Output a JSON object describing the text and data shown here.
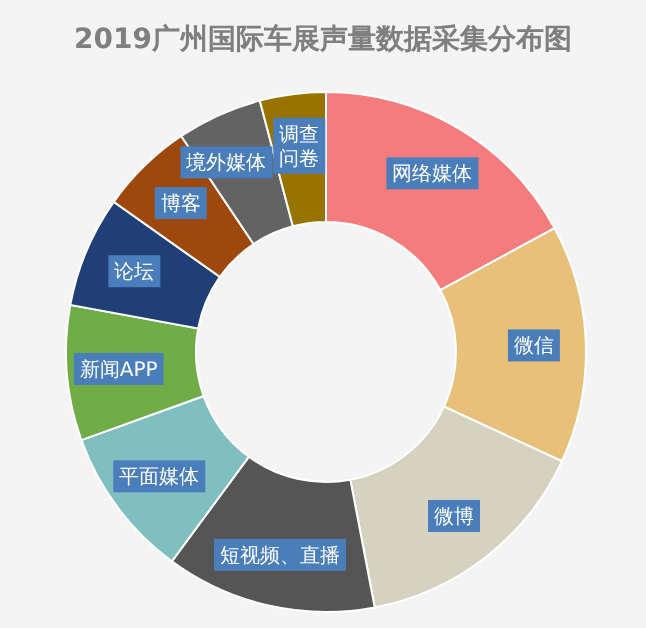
{
  "chart_data": {
    "type": "donut",
    "title": "2019广州国际车展声量数据采集分布图",
    "categories": [
      "网络媒体",
      "微信",
      "微博",
      "短视频、直播",
      "平面媒体",
      "新闻APP",
      "论坛",
      "博客",
      "境外媒体",
      "调查问卷"
    ],
    "values": [
      17.1,
      14.8,
      15.1,
      13.1,
      9.4,
      8.4,
      6.9,
      5.8,
      5.3,
      4.1
    ],
    "colors": [
      "#f47c7c",
      "#e8c07a",
      "#d6d2c0",
      "#555555",
      "#7fbfbf",
      "#70ad47",
      "#1f3f76",
      "#9e480e",
      "#636363",
      "#997300"
    ]
  }
}
